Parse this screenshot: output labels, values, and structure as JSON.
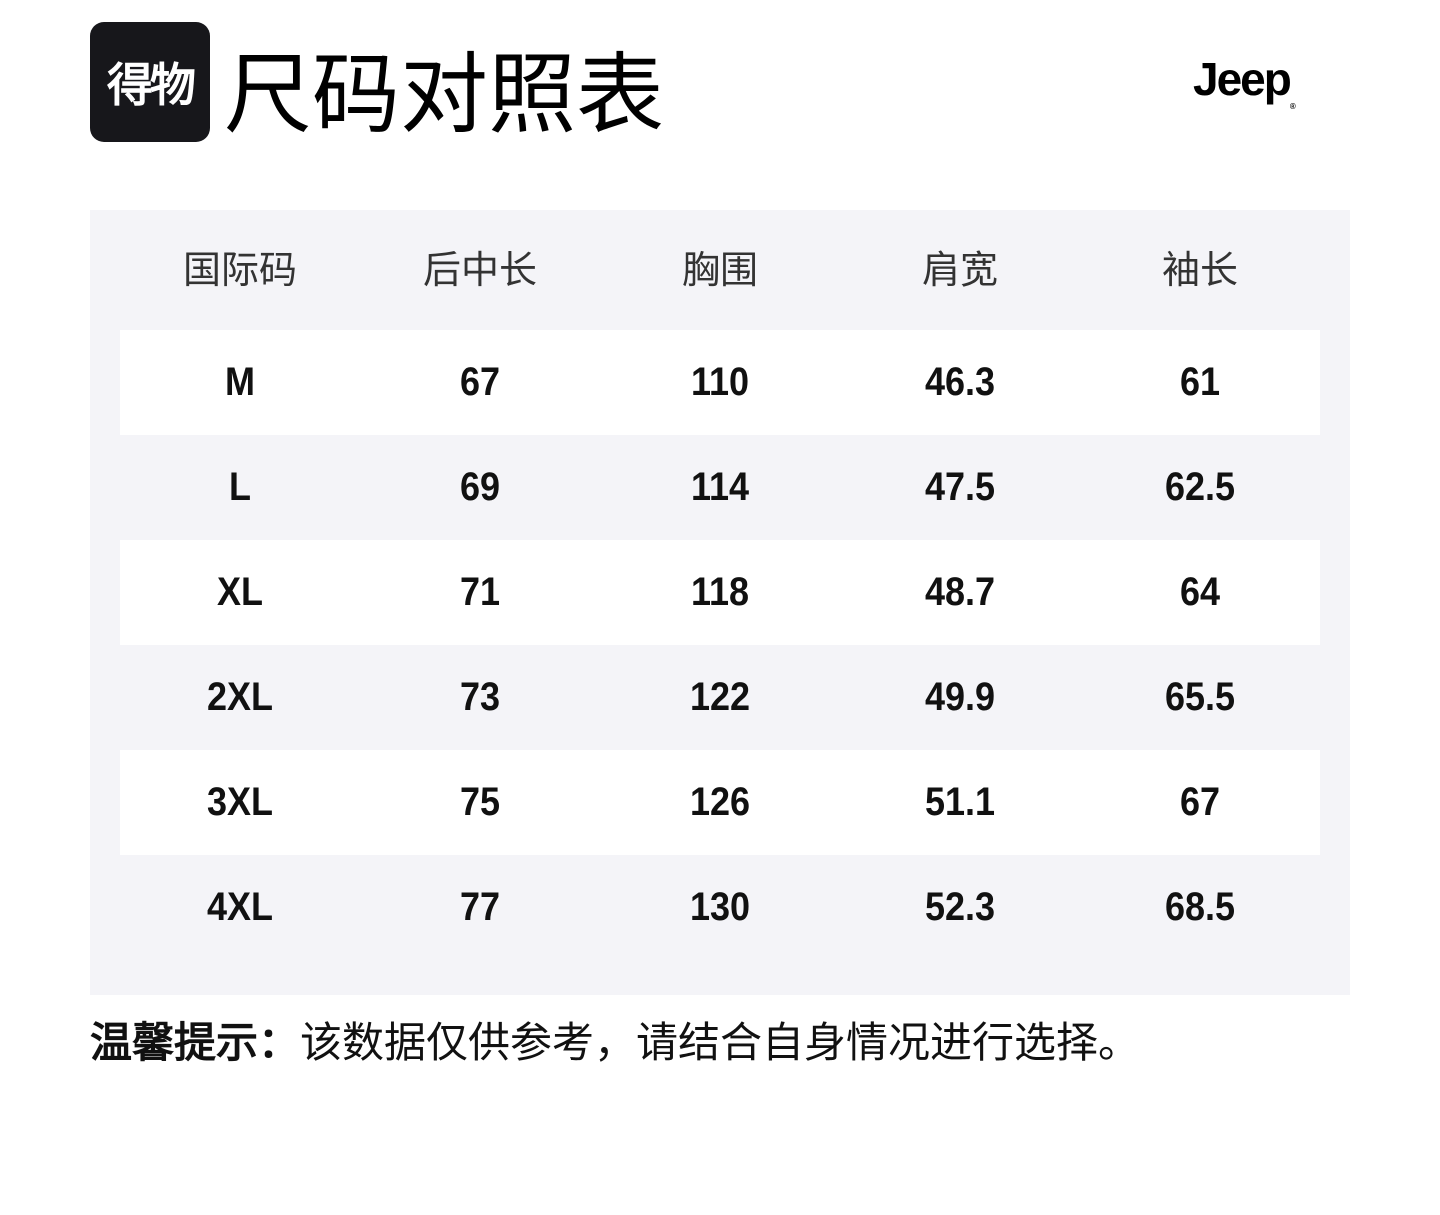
{
  "header": {
    "app_logo": "得物",
    "title": "尺码对照表",
    "brand_logo": "Jeep"
  },
  "table": {
    "columns": [
      "国际码",
      "后中长",
      "胸围",
      "肩宽",
      "袖长"
    ],
    "rows": [
      [
        "M",
        "67",
        "110",
        "46.3",
        "61"
      ],
      [
        "L",
        "69",
        "114",
        "47.5",
        "62.5"
      ],
      [
        "XL",
        "71",
        "118",
        "48.7",
        "64"
      ],
      [
        "2XL",
        "73",
        "122",
        "49.9",
        "65.5"
      ],
      [
        "3XL",
        "75",
        "126",
        "51.1",
        "67"
      ],
      [
        "4XL",
        "77",
        "130",
        "52.3",
        "68.5"
      ]
    ]
  },
  "tip": {
    "label": "温馨提示：",
    "text": "该数据仅供参考，请结合自身情况进行选择。"
  }
}
